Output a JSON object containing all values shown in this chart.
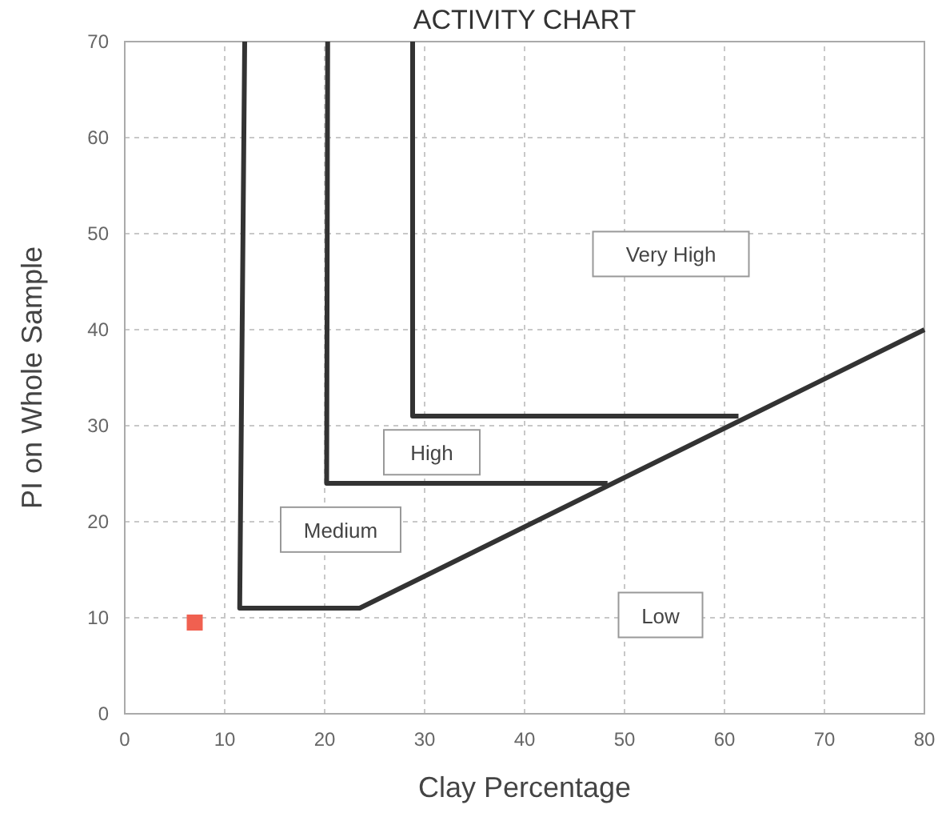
{
  "chart_data": {
    "type": "line",
    "title": "ACTIVITY CHART",
    "xlabel": "Clay Percentage",
    "ylabel": "PI on Whole Sample",
    "xlim": [
      0,
      80
    ],
    "ylim": [
      0,
      70
    ],
    "xticks": [
      0,
      10,
      20,
      30,
      40,
      50,
      60,
      70,
      80
    ],
    "yticks": [
      0,
      10,
      20,
      30,
      40,
      50,
      60,
      70
    ],
    "grid": true,
    "series": [
      {
        "color": "#333333",
        "x": [
          12,
          11.5,
          23.5,
          80
        ],
        "values": [
          70,
          11,
          11,
          40
        ]
      },
      {
        "color": "#333333",
        "x": [
          20.3,
          20.2,
          48.3
        ],
        "values": [
          70,
          24,
          24
        ]
      },
      {
        "color": "#333333",
        "x": [
          28.8,
          28.8,
          61.4
        ],
        "values": [
          70,
          31,
          31
        ]
      },
      {
        "type": "scatter",
        "marker": "square",
        "color": "#f06050",
        "x": [
          7
        ],
        "values": [
          9.5
        ]
      }
    ],
    "annotations": [
      "Very High",
      "High",
      "Medium",
      "Low"
    ]
  }
}
